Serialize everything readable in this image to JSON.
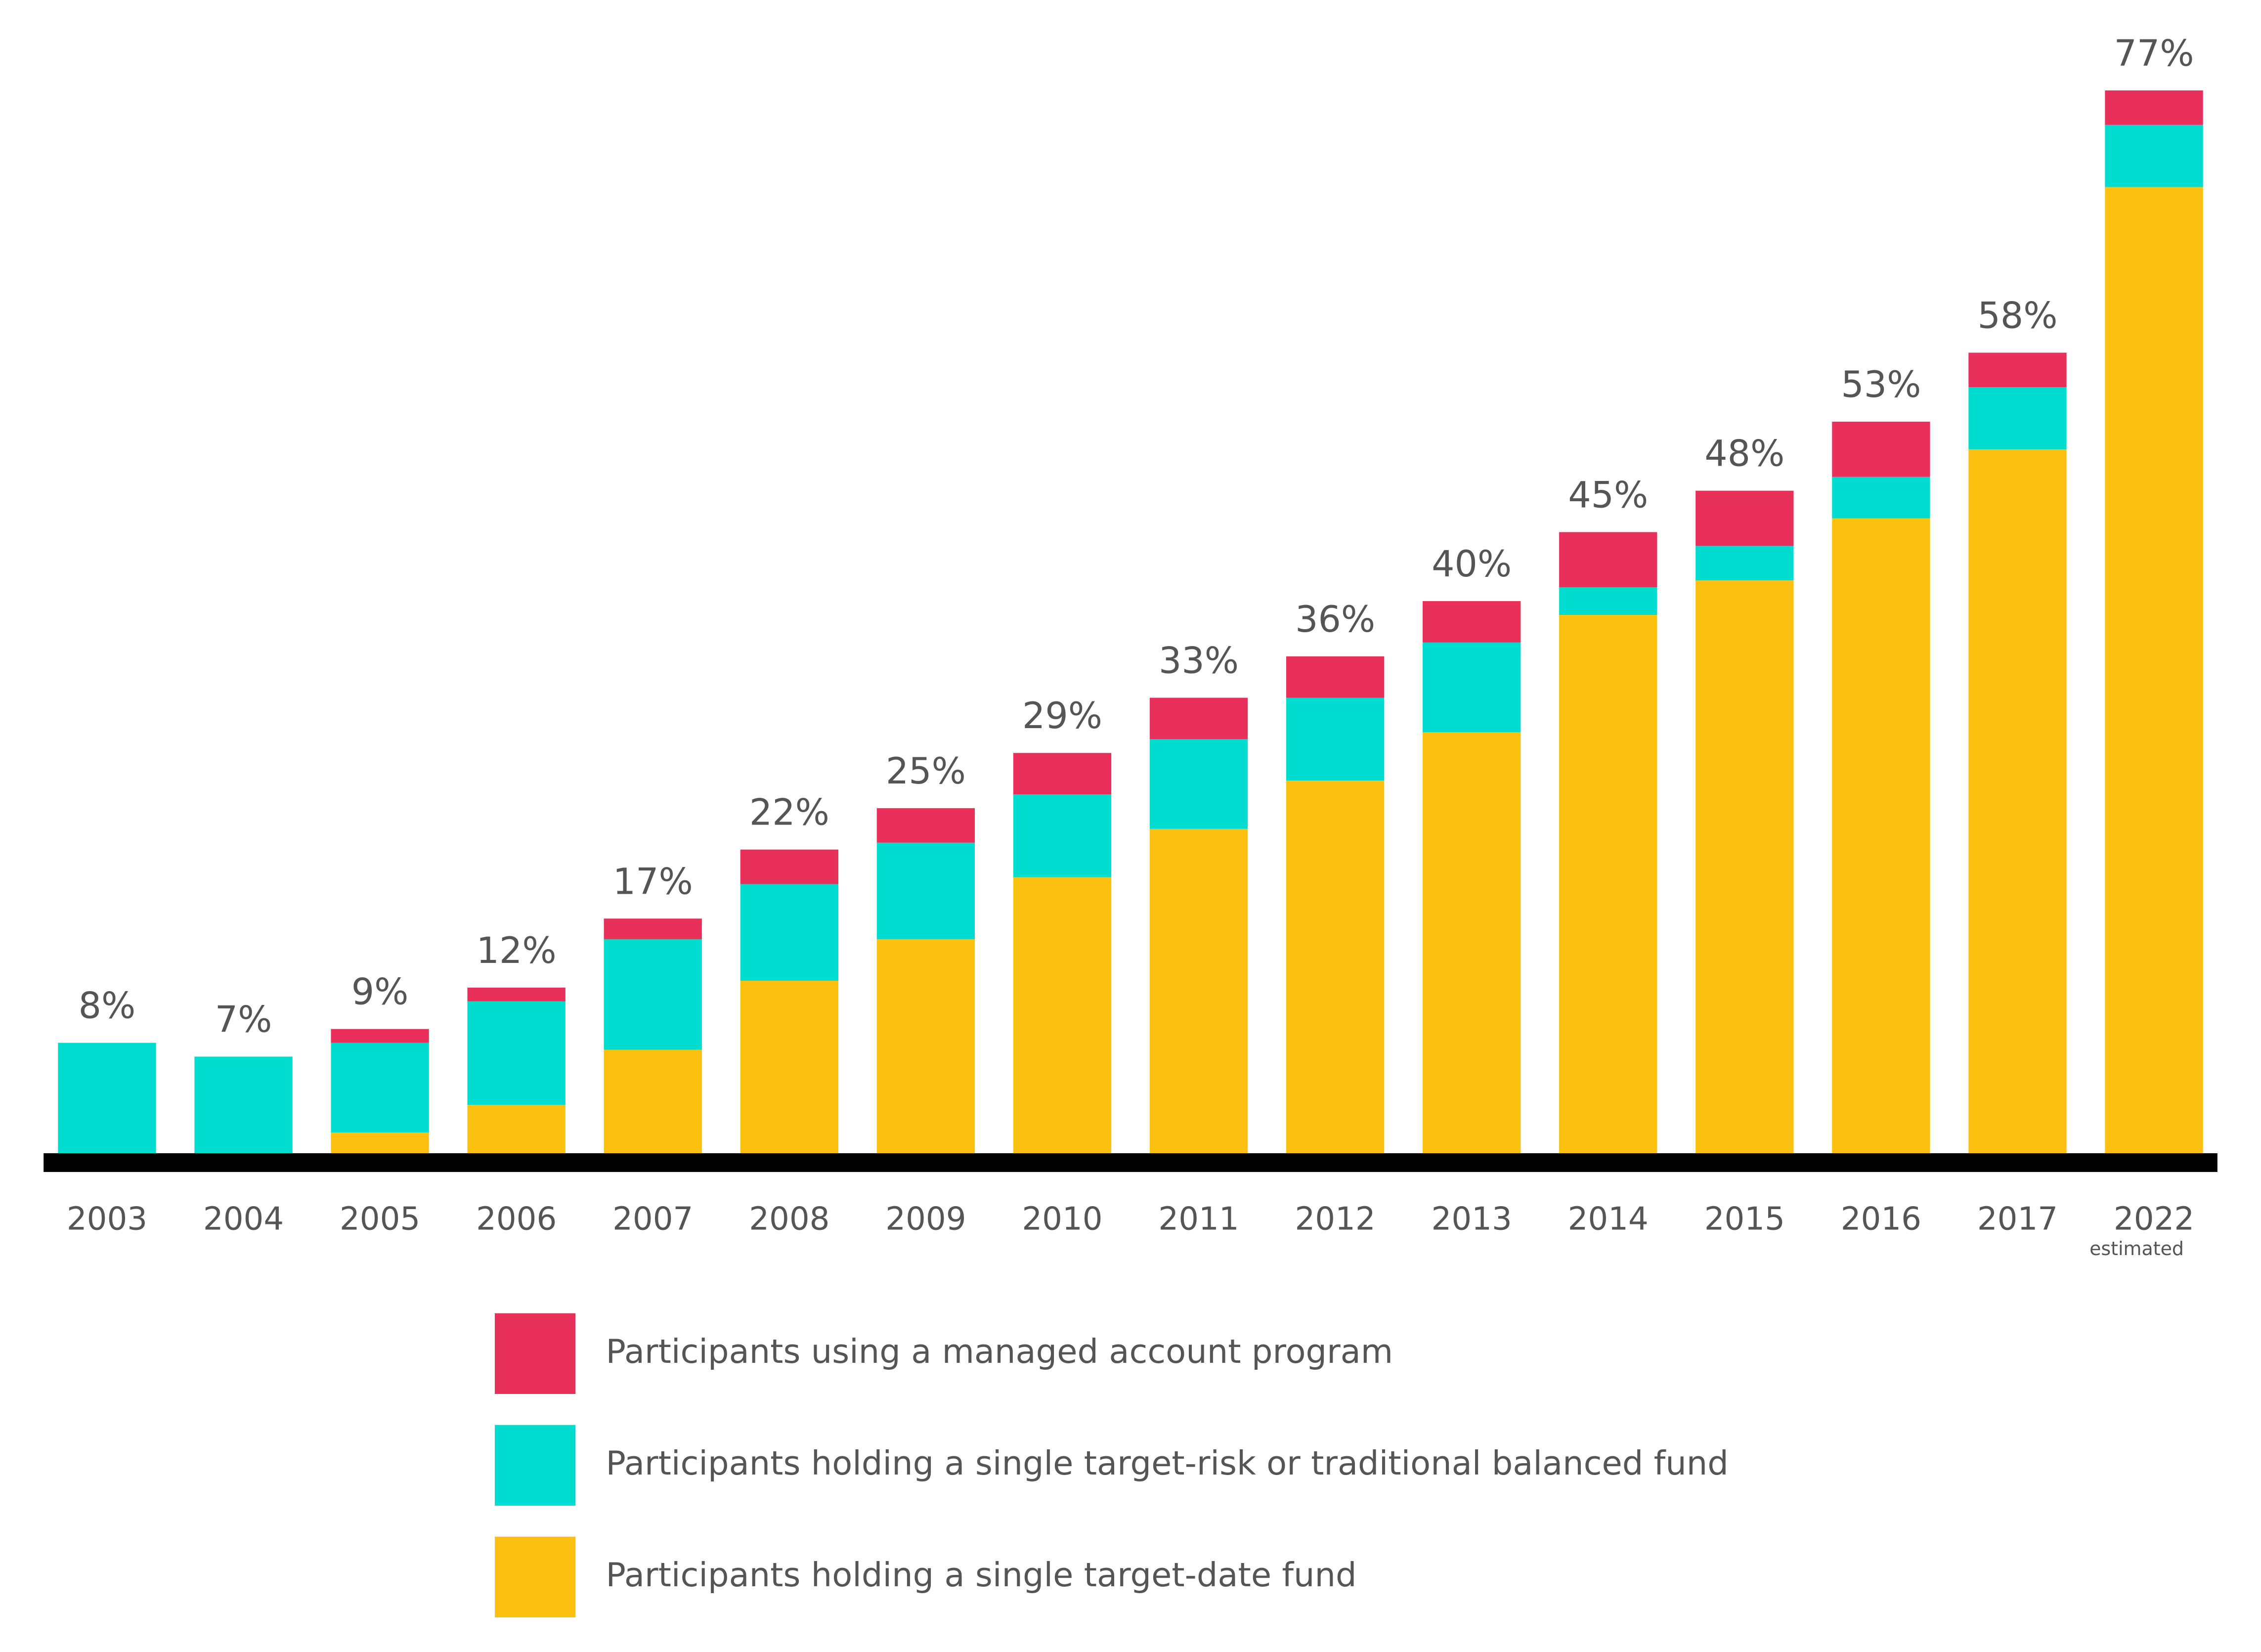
{
  "chart_data": {
    "type": "stacked_bar",
    "categories": [
      "2003",
      "2004",
      "2005",
      "2006",
      "2007",
      "2008",
      "2009",
      "2010",
      "2011",
      "2012",
      "2013",
      "2014",
      "2015",
      "2016",
      "2017",
      "2022"
    ],
    "series": [
      {
        "name": "Participants holding a single target-date fund",
        "color": "#fbc010",
        "values": [
          0,
          0,
          1.5,
          3.5,
          7.5,
          12.5,
          15.5,
          20,
          23.5,
          27,
          30.5,
          39,
          41.5,
          46,
          51,
          70
        ]
      },
      {
        "name": "Participants holding a single target-risk or traditional balanced fund",
        "color": "#00dcd0",
        "values": [
          8,
          7,
          6.5,
          7.5,
          8,
          7,
          7,
          6,
          6.5,
          6,
          6.5,
          2,
          2.5,
          3,
          4.5,
          4.5
        ]
      },
      {
        "name": "Participants using a managed account program",
        "color": "#e8305a",
        "values": [
          0,
          0,
          1,
          1,
          1.5,
          2.5,
          2.5,
          3,
          3,
          3,
          3,
          4,
          4,
          4,
          2.5,
          2.5
        ]
      }
    ],
    "totals": [
      8,
      7,
      9,
      12,
      17,
      22,
      25,
      29,
      33,
      36,
      40,
      45,
      48,
      53,
      58,
      77
    ],
    "total_labels": [
      "8%",
      "7%",
      "9%",
      "12%",
      "17%",
      "22%",
      "25%",
      "29%",
      "33%",
      "36%",
      "40%",
      "45%",
      "48%",
      "53%",
      "58%",
      "77%"
    ],
    "annotations": [
      {
        "text": "estimated",
        "category": "2022"
      }
    ],
    "ylim": [
      0,
      80
    ]
  }
}
